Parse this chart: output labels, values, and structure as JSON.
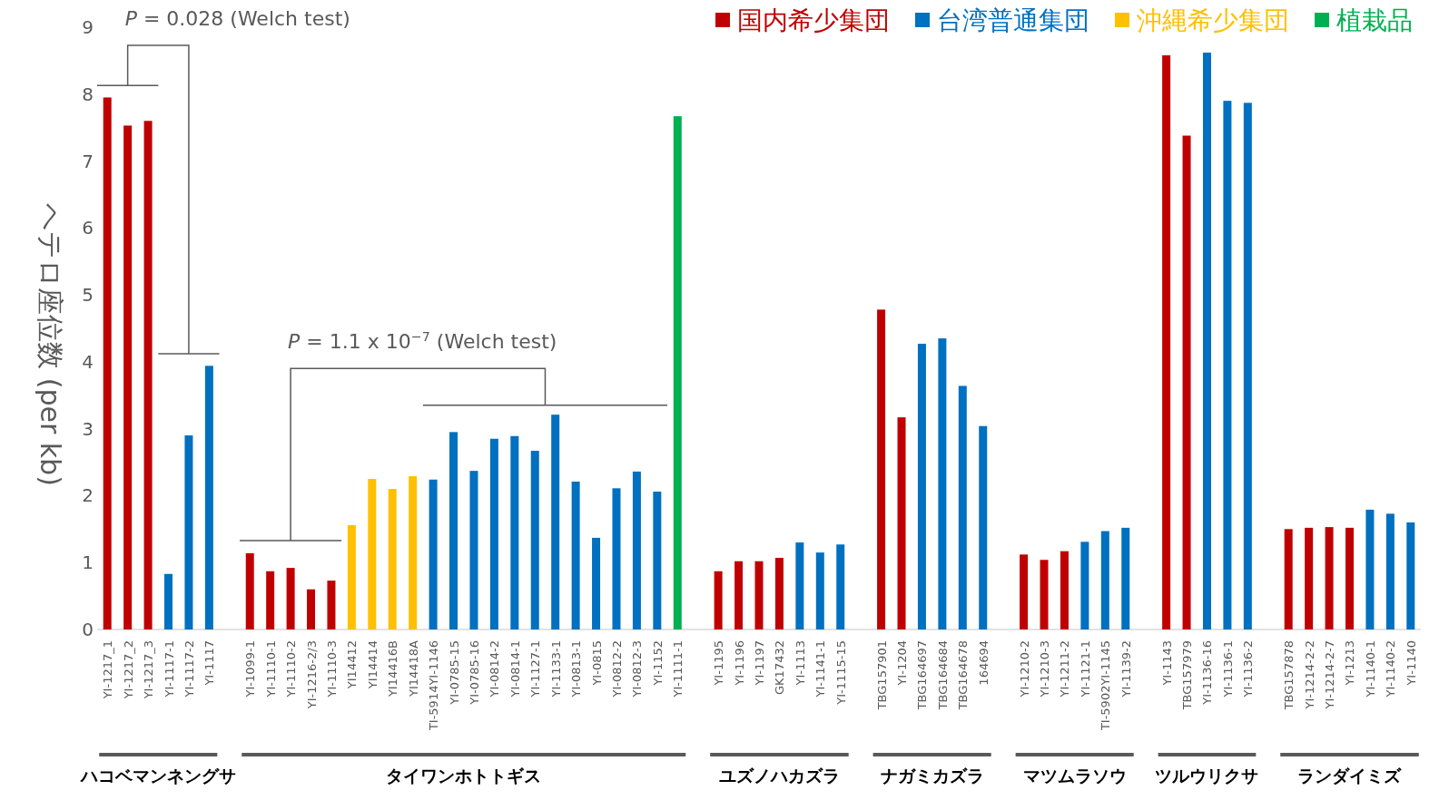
{
  "chart_data": {
    "type": "bar",
    "ylabel": "ヘテロ座位数 (per kb)",
    "ylim": [
      0,
      9
    ],
    "yticks": [
      0,
      1,
      2,
      3,
      4,
      5,
      6,
      7,
      8,
      9
    ],
    "grid": false,
    "legend": "top right",
    "categories": [
      "YI-1217_1",
      "YI-1217_2",
      "YI-1217_3",
      "YI-1117-1",
      "YI-1117-2",
      "YI-1117",
      null,
      "YI-1099-1",
      "YI-1110-1",
      "YI-1110-2",
      "YI-1216-2/3",
      "YI-1110-3",
      "YI14412",
      "YI14414",
      "YI14416B",
      "YI14418A",
      "TI-5914YI-1146",
      "YI-0785-15",
      "YI-0785-16",
      "YI-0814-2",
      "YI-0814-1",
      "YI-1127-1",
      "YI-1133-1",
      "YI-0813-1",
      "YI-0815",
      "YI-0812-2",
      "YI-0812-3",
      "YI-1152",
      "YI-1111-1",
      null,
      "YI-1195",
      "YI-1196",
      "YI-1197",
      "GK17432",
      "YI-1113",
      "YI-1141-1",
      "YI-1115-15",
      null,
      "TBG157901",
      "YI-1204",
      "TBG164697",
      "TBG164684",
      "TBG164678",
      "164694",
      null,
      "YI-1210-2",
      "YI-1210-3",
      "YI-1211-2",
      "YI-1121-1",
      "TI-5902YI-1145",
      "YI-1139-2",
      null,
      "YI-1143",
      "TBG157979",
      "YI-1136-16",
      "YI-1136-1",
      "YI-1136-2",
      null,
      "TBG157878",
      "YI-1214-2-2",
      "YI-1214-2-7",
      "YI-1213",
      "YI-1140-1",
      "YI-1140-2",
      "YI-1140"
    ],
    "series": [
      {
        "name": "国内希少集団",
        "color": "#c00000",
        "values": [
          7.95,
          7.53,
          7.6,
          null,
          null,
          null,
          null,
          1.14,
          0.87,
          0.92,
          0.6,
          0.73,
          null,
          null,
          null,
          null,
          null,
          null,
          null,
          null,
          null,
          null,
          null,
          null,
          null,
          null,
          null,
          null,
          null,
          null,
          0.87,
          1.02,
          1.02,
          1.07,
          null,
          null,
          null,
          null,
          4.78,
          3.17,
          null,
          null,
          null,
          null,
          null,
          1.12,
          1.04,
          1.17,
          null,
          null,
          null,
          null,
          8.58,
          7.38,
          null,
          null,
          null,
          null,
          1.5,
          1.52,
          1.53,
          1.52,
          null,
          null,
          null
        ]
      },
      {
        "name": "台湾普通集団",
        "color": "#0070c0",
        "values": [
          null,
          null,
          null,
          0.83,
          2.9,
          3.94,
          null,
          null,
          null,
          null,
          null,
          null,
          null,
          null,
          null,
          null,
          2.24,
          2.95,
          2.37,
          2.85,
          2.89,
          2.67,
          3.21,
          2.21,
          1.37,
          2.11,
          2.36,
          2.06,
          null,
          null,
          null,
          null,
          null,
          null,
          1.3,
          1.15,
          1.27,
          null,
          null,
          null,
          4.27,
          4.35,
          3.64,
          3.04,
          null,
          null,
          null,
          null,
          1.31,
          1.47,
          1.52,
          null,
          null,
          null,
          8.62,
          7.9,
          7.87,
          null,
          null,
          null,
          null,
          null,
          1.79,
          1.73,
          1.6
        ]
      },
      {
        "name": "沖縄希少集団",
        "color": "#ffc000",
        "values": [
          null,
          null,
          null,
          null,
          null,
          null,
          null,
          null,
          null,
          null,
          null,
          null,
          1.56,
          2.25,
          2.1,
          2.29,
          null,
          null,
          null,
          null,
          null,
          null,
          null,
          null,
          null,
          null,
          null,
          null,
          null,
          null,
          null,
          null,
          null,
          null,
          null,
          null,
          null,
          null,
          null,
          null,
          null,
          null,
          null,
          null,
          null,
          null,
          null,
          null,
          null,
          null,
          null,
          null,
          null,
          null,
          null,
          null,
          null,
          null,
          null,
          null,
          null,
          null,
          null,
          null,
          null
        ]
      },
      {
        "name": "植栽品",
        "color": "#00b050",
        "values": [
          null,
          null,
          null,
          null,
          null,
          null,
          null,
          null,
          null,
          null,
          null,
          null,
          null,
          null,
          null,
          null,
          null,
          null,
          null,
          null,
          null,
          null,
          null,
          null,
          null,
          null,
          null,
          null,
          7.67,
          null,
          null,
          null,
          null,
          null,
          null,
          null,
          null,
          null,
          null,
          null,
          null,
          null,
          null,
          null,
          null,
          null,
          null,
          null,
          null,
          null,
          null,
          null,
          null,
          null,
          null,
          null,
          null,
          null,
          null,
          null,
          null,
          null,
          null,
          null,
          null
        ]
      }
    ],
    "annotations": [
      "P = 0.028 (Welch test)",
      "P = 1.1 x 10$^{−7}$ (Welch test)",
      "ハコベマンネングサ",
      "タイワンホトトギス",
      "ユズノハカズラ",
      "ナガミカズラ",
      "マツムラソウ",
      "ツルウリクサ",
      "ランダイミズ"
    ]
  }
}
